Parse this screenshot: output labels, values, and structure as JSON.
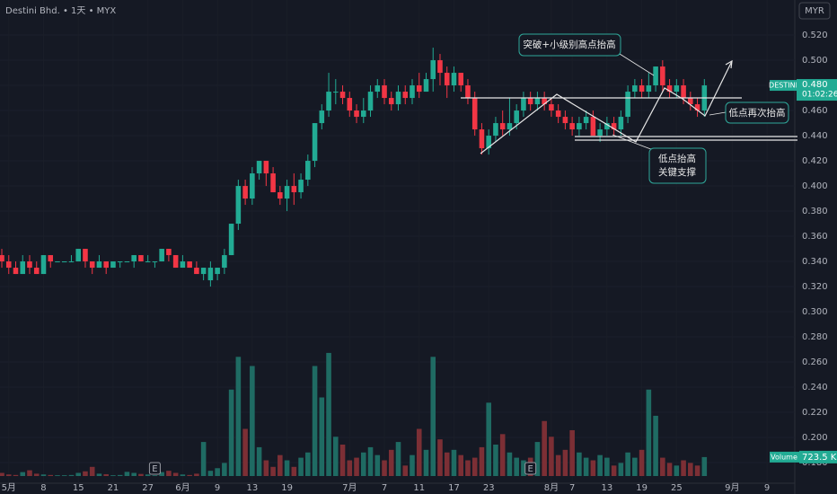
{
  "chart_data": {
    "type": "candlestick",
    "title": "Destini Bhd. • 1天 • MYX",
    "currency": "MYR",
    "symbol": "DESTINI",
    "countdown": "01:02:26",
    "last_price_label": "0.480",
    "volume_name": "Volume",
    "last_volume_label": "723.5 K",
    "earnings_marker": "E",
    "earnings_at": [
      22,
      76
    ],
    "annotations": [
      "突破+小级别高点抬高",
      "低点再次抬高",
      "低点抬高",
      "关键支撑"
    ],
    "up_color": "#22ab94",
    "down_color": "#f23645",
    "volume_up_color": "#1f6b63",
    "volume_down_color": "#7c2f35",
    "grid": true,
    "ylim": [
      0.1636,
      0.5479
    ],
    "volume_ylim": [
      0,
      4800
    ],
    "yticks": [
      {
        "value": 0.52,
        "label": "0.520"
      },
      {
        "value": 0.5,
        "label": "0.500"
      },
      {
        "value": 0.48,
        "label": "0.480"
      },
      {
        "value": 0.46,
        "label": "0.460"
      },
      {
        "value": 0.44,
        "label": "0.440"
      },
      {
        "value": 0.42,
        "label": "0.420"
      },
      {
        "value": 0.4,
        "label": "0.400"
      },
      {
        "value": 0.38,
        "label": "0.380"
      },
      {
        "value": 0.36,
        "label": "0.360"
      },
      {
        "value": 0.34,
        "label": "0.340"
      },
      {
        "value": 0.32,
        "label": "0.320"
      },
      {
        "value": 0.3,
        "label": "0.300"
      },
      {
        "value": 0.28,
        "label": "0.280"
      },
      {
        "value": 0.26,
        "label": "0.260"
      },
      {
        "value": 0.24,
        "label": "0.240"
      },
      {
        "value": 0.22,
        "label": "0.220"
      },
      {
        "value": 0.2,
        "label": "0.200"
      },
      {
        "value": 0.18,
        "label": "0.180"
      }
    ],
    "xlim": [
      -0.26,
      114
    ],
    "xticks": [
      {
        "value": 1,
        "label": "5月"
      },
      {
        "value": 6,
        "label": "8"
      },
      {
        "value": 11,
        "label": "15"
      },
      {
        "value": 16,
        "label": "21"
      },
      {
        "value": 21,
        "label": "27"
      },
      {
        "value": 26,
        "label": "6月"
      },
      {
        "value": 31,
        "label": "9"
      },
      {
        "value": 36,
        "label": "13"
      },
      {
        "value": 41,
        "label": "19"
      },
      {
        "value": 50,
        "label": "7月"
      },
      {
        "value": 55,
        "label": "7"
      },
      {
        "value": 60,
        "label": "11"
      },
      {
        "value": 65,
        "label": "17"
      },
      {
        "value": 70,
        "label": "23"
      },
      {
        "value": 79,
        "label": "8月"
      },
      {
        "value": 82,
        "label": "7"
      },
      {
        "value": 87,
        "label": "13"
      },
      {
        "value": 92,
        "label": "19"
      },
      {
        "value": 97,
        "label": "25"
      },
      {
        "value": 105,
        "label": "9月"
      },
      {
        "value": 110,
        "label": "9"
      }
    ],
    "open": [
      0.345,
      0.34,
      0.335,
      0.33,
      0.34,
      0.335,
      0.33,
      0.345,
      0.34,
      0.34,
      0.34,
      0.34,
      0.35,
      0.34,
      0.335,
      0.34,
      0.335,
      0.34,
      0.34,
      0.34,
      0.345,
      0.34,
      0.34,
      0.34,
      0.35,
      0.345,
      0.335,
      0.34,
      0.335,
      0.33,
      0.325,
      0.33,
      0.335,
      0.345,
      0.37,
      0.4,
      0.39,
      0.41,
      0.42,
      0.41,
      0.395,
      0.39,
      0.4,
      0.395,
      0.405,
      0.42,
      0.45,
      0.46,
      0.475,
      0.475,
      0.47,
      0.46,
      0.455,
      0.46,
      0.475,
      0.48,
      0.47,
      0.465,
      0.475,
      0.47,
      0.48,
      0.475,
      0.485,
      0.5,
      0.49,
      0.48,
      0.49,
      0.48,
      0.47,
      0.445,
      0.43,
      0.44,
      0.45,
      0.445,
      0.45,
      0.46,
      0.47,
      0.465,
      0.47,
      0.465,
      0.46,
      0.455,
      0.45,
      0.445,
      0.45,
      0.455,
      0.44,
      0.445,
      0.45,
      0.445,
      0.455,
      0.475,
      0.48,
      0.475,
      0.48,
      0.495,
      0.48,
      0.475,
      0.48,
      0.47,
      0.465,
      0.46
    ],
    "high": [
      0.35,
      0.345,
      0.34,
      0.345,
      0.345,
      0.34,
      0.345,
      0.345,
      0.34,
      0.34,
      0.345,
      0.35,
      0.35,
      0.34,
      0.345,
      0.34,
      0.34,
      0.34,
      0.34,
      0.345,
      0.345,
      0.345,
      0.34,
      0.35,
      0.35,
      0.345,
      0.345,
      0.34,
      0.34,
      0.335,
      0.34,
      0.335,
      0.35,
      0.37,
      0.405,
      0.405,
      0.415,
      0.42,
      0.42,
      0.415,
      0.4,
      0.405,
      0.41,
      0.41,
      0.425,
      0.45,
      0.465,
      0.49,
      0.485,
      0.48,
      0.475,
      0.465,
      0.47,
      0.48,
      0.485,
      0.485,
      0.475,
      0.48,
      0.48,
      0.485,
      0.49,
      0.49,
      0.51,
      0.505,
      0.495,
      0.495,
      0.49,
      0.485,
      0.475,
      0.45,
      0.445,
      0.455,
      0.46,
      0.47,
      0.465,
      0.475,
      0.475,
      0.475,
      0.475,
      0.47,
      0.465,
      0.46,
      0.455,
      0.455,
      0.46,
      0.46,
      0.45,
      0.455,
      0.455,
      0.46,
      0.48,
      0.485,
      0.485,
      0.49,
      0.495,
      0.5,
      0.485,
      0.485,
      0.485,
      0.475,
      0.47,
      0.485
    ],
    "low": [
      0.335,
      0.33,
      0.33,
      0.33,
      0.33,
      0.33,
      0.33,
      0.335,
      0.34,
      0.34,
      0.34,
      0.34,
      0.335,
      0.33,
      0.335,
      0.33,
      0.335,
      0.335,
      0.34,
      0.335,
      0.34,
      0.34,
      0.335,
      0.34,
      0.34,
      0.335,
      0.335,
      0.335,
      0.33,
      0.325,
      0.32,
      0.325,
      0.33,
      0.345,
      0.365,
      0.385,
      0.385,
      0.405,
      0.4,
      0.395,
      0.385,
      0.38,
      0.385,
      0.39,
      0.4,
      0.415,
      0.445,
      0.455,
      0.465,
      0.465,
      0.455,
      0.45,
      0.45,
      0.455,
      0.47,
      0.465,
      0.46,
      0.46,
      0.465,
      0.465,
      0.47,
      0.475,
      0.475,
      0.48,
      0.47,
      0.475,
      0.475,
      0.465,
      0.44,
      0.425,
      0.425,
      0.435,
      0.44,
      0.44,
      0.445,
      0.455,
      0.46,
      0.46,
      0.46,
      0.455,
      0.45,
      0.445,
      0.44,
      0.44,
      0.445,
      0.44,
      0.435,
      0.44,
      0.44,
      0.44,
      0.45,
      0.47,
      0.47,
      0.47,
      0.475,
      0.475,
      0.47,
      0.47,
      0.465,
      0.46,
      0.455,
      0.455
    ],
    "close": [
      0.34,
      0.335,
      0.33,
      0.34,
      0.335,
      0.33,
      0.345,
      0.34,
      0.34,
      0.34,
      0.34,
      0.35,
      0.34,
      0.335,
      0.34,
      0.335,
      0.34,
      0.34,
      0.34,
      0.345,
      0.34,
      0.34,
      0.34,
      0.35,
      0.345,
      0.335,
      0.34,
      0.335,
      0.33,
      0.335,
      0.335,
      0.335,
      0.345,
      0.37,
      0.4,
      0.39,
      0.41,
      0.42,
      0.41,
      0.395,
      0.39,
      0.4,
      0.395,
      0.405,
      0.42,
      0.45,
      0.46,
      0.475,
      0.475,
      0.47,
      0.46,
      0.455,
      0.46,
      0.475,
      0.48,
      0.47,
      0.465,
      0.475,
      0.47,
      0.48,
      0.475,
      0.485,
      0.5,
      0.49,
      0.48,
      0.49,
      0.48,
      0.47,
      0.445,
      0.43,
      0.44,
      0.45,
      0.445,
      0.45,
      0.46,
      0.47,
      0.465,
      0.47,
      0.465,
      0.46,
      0.455,
      0.45,
      0.445,
      0.45,
      0.455,
      0.44,
      0.445,
      0.45,
      0.445,
      0.455,
      0.475,
      0.48,
      0.475,
      0.48,
      0.495,
      0.48,
      0.475,
      0.48,
      0.47,
      0.465,
      0.46,
      0.48
    ],
    "volume": [
      120,
      60,
      40,
      150,
      220,
      90,
      60,
      40,
      30,
      30,
      40,
      120,
      180,
      350,
      90,
      70,
      30,
      40,
      160,
      120,
      80,
      60,
      30,
      150,
      200,
      120,
      60,
      40,
      90,
      1300,
      200,
      300,
      500,
      3300,
      4550,
      1800,
      4200,
      1100,
      600,
      350,
      800,
      600,
      350,
      700,
      900,
      4200,
      3000,
      4700,
      1500,
      1200,
      600,
      700,
      900,
      1100,
      800,
      600,
      1000,
      1300,
      400,
      800,
      1800,
      1000,
      4550,
      1400,
      900,
      1000,
      800,
      600,
      700,
      1100,
      2800,
      1200,
      1600,
      900,
      700,
      600,
      700,
      1300,
      2100,
      1500,
      800,
      1000,
      1750,
      900,
      700,
      600,
      800,
      700,
      400,
      500,
      900,
      700,
      1000,
      3300,
      2300,
      700,
      500,
      400,
      600,
      500,
      400,
      723.5
    ]
  }
}
